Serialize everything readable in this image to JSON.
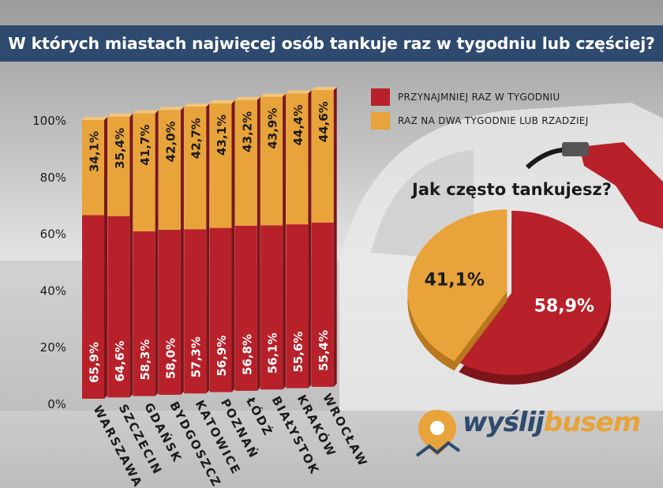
{
  "header": {
    "title": "W których miastach najwięcej osób tankuje raz w tygodniu lub częściej?"
  },
  "colors": {
    "red": "#b8212a",
    "orange": "#e8a33a",
    "navy": "#2e4a6e"
  },
  "legend": {
    "items": [
      {
        "label": "PRZYNAJMNIEJ RAZ W TYGODNIU",
        "color": "#b8212a"
      },
      {
        "label": "RAZ NA DWA TYGODNIE LUB RZADZIEJ",
        "color": "#e8a33a"
      }
    ]
  },
  "chart_data": [
    {
      "type": "bar",
      "stacked": true,
      "percent": true,
      "title": "W których miastach najwięcej osób tankuje raz w tygodniu lub częściej?",
      "categories": [
        "WARSZAWA",
        "SZCZECIN",
        "GDAŃSK",
        "BYDGOSZCZ",
        "KATOWICE",
        "POZNAŃ",
        "ŁÓDŹ",
        "BIAŁYSTOK",
        "KRAKÓW",
        "WROCŁAW"
      ],
      "series": [
        {
          "name": "PRZYNAJMNIEJ RAZ W TYGODNIU",
          "values": [
            65.9,
            64.6,
            58.3,
            58.0,
            57.3,
            56.9,
            56.8,
            56.1,
            55.6,
            55.4
          ],
          "labels": [
            "65,9%",
            "64,6%",
            "58,3%",
            "58,0%",
            "57,3%",
            "56,9%",
            "56,8%",
            "56,1%",
            "55,6%",
            "55,4%"
          ]
        },
        {
          "name": "RAZ NA DWA TYGODNIE LUB RZADZIEJ",
          "values": [
            34.1,
            35.4,
            41.7,
            42.0,
            42.7,
            43.1,
            43.2,
            43.9,
            44.4,
            44.6
          ],
          "labels": [
            "34,1%",
            "35,4%",
            "41,7%",
            "42,0%",
            "42,7%",
            "43,1%",
            "43,2%",
            "43,9%",
            "44,4%",
            "44,6%"
          ]
        }
      ],
      "yticks": [
        "0%",
        "20%",
        "40%",
        "60%",
        "80%",
        "100%"
      ],
      "ylim": [
        0,
        100
      ]
    },
    {
      "type": "pie",
      "title": "Jak często tankujesz?",
      "slices": [
        {
          "name": "PRZYNAJMNIEJ RAZ W TYGODNIU",
          "value": 58.9,
          "label": "58,9%"
        },
        {
          "name": "RAZ NA DWA TYGODNIE LUB RZADZIEJ",
          "value": 41.1,
          "label": "41,1%"
        }
      ]
    }
  ],
  "logo": {
    "part1": "wyślij",
    "part2": "busem"
  }
}
